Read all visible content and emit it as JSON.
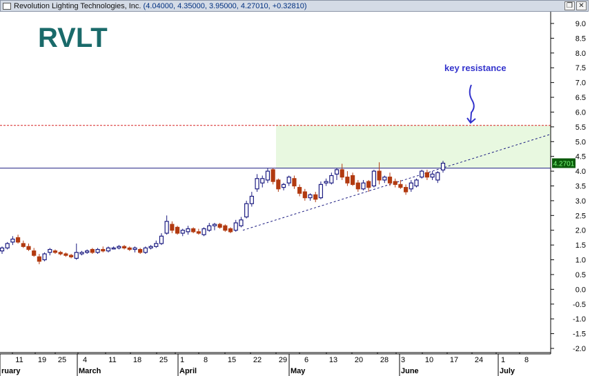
{
  "window": {
    "title": "Revolution Lighting Technologies, Inc.",
    "quote": "(4.04000, 4.35000, 3.95000, 4.27010, +0.32810)",
    "restore_icon": "restore-window-icon",
    "close_icon": "close-window-icon"
  },
  "chart_data": {
    "type": "candlestick",
    "watermark": "RVLT",
    "annotation": "key resistance",
    "last_price_label": "4.2701",
    "colors": {
      "up": "#1a1a80",
      "down": "#b23a10",
      "resistance": "#1a1a80",
      "dashed_red": "#d62020",
      "trend": "#1a1a80",
      "zone": "#e8f8e0",
      "annotation": "#3333cc",
      "watermark": "#1a6a6a",
      "last_badge_bg": "#0a5a0a",
      "last_badge_fg": "#7dff7d"
    },
    "y_axis": {
      "min": -2.0,
      "max": 9.0,
      "ticks": [
        "9.0",
        "8.5",
        "8.0",
        "7.5",
        "7.0",
        "6.5",
        "6.0",
        "5.5",
        "5.0",
        "4.5",
        "4.0",
        "3.5",
        "3.0",
        "2.5",
        "2.0",
        "1.5",
        "1.0",
        "0.5",
        "0.0",
        "-0.5",
        "-1.0",
        "-1.5",
        "-2.0"
      ]
    },
    "x_ticks": [
      "11",
      "19",
      "25",
      "4",
      "11",
      "18",
      "25",
      "1",
      "8",
      "15",
      "22",
      "29",
      "6",
      "13",
      "20",
      "28",
      "3",
      "10",
      "17",
      "24",
      "1",
      "8"
    ],
    "months": [
      "ruary",
      "March",
      "April",
      "May",
      "June",
      "July"
    ],
    "resistance_level": 4.1,
    "red_dashed_level": 5.55,
    "candles": [
      {
        "o": 1.3,
        "h": 1.45,
        "l": 1.2,
        "c": 1.4
      },
      {
        "o": 1.4,
        "h": 1.6,
        "l": 1.35,
        "c": 1.55
      },
      {
        "o": 1.6,
        "h": 1.8,
        "l": 1.5,
        "c": 1.7
      },
      {
        "o": 1.75,
        "h": 1.85,
        "l": 1.55,
        "c": 1.6
      },
      {
        "o": 1.55,
        "h": 1.65,
        "l": 1.4,
        "c": 1.45
      },
      {
        "o": 1.45,
        "h": 1.55,
        "l": 1.3,
        "c": 1.35
      },
      {
        "o": 1.3,
        "h": 1.4,
        "l": 1.1,
        "c": 1.15
      },
      {
        "o": 1.1,
        "h": 1.2,
        "l": 0.85,
        "c": 0.95
      },
      {
        "o": 1.0,
        "h": 1.25,
        "l": 0.95,
        "c": 1.2
      },
      {
        "o": 1.25,
        "h": 1.4,
        "l": 1.15,
        "c": 1.35
      },
      {
        "o": 1.3,
        "h": 1.35,
        "l": 1.2,
        "c": 1.25
      },
      {
        "o": 1.25,
        "h": 1.3,
        "l": 1.15,
        "c": 1.2
      },
      {
        "o": 1.2,
        "h": 1.25,
        "l": 1.1,
        "c": 1.15
      },
      {
        "o": 1.15,
        "h": 1.2,
        "l": 1.05,
        "c": 1.1
      },
      {
        "o": 1.05,
        "h": 1.55,
        "l": 1.0,
        "c": 1.25
      },
      {
        "o": 1.2,
        "h": 1.3,
        "l": 1.15,
        "c": 1.25
      },
      {
        "o": 1.25,
        "h": 1.35,
        "l": 1.2,
        "c": 1.3
      },
      {
        "o": 1.35,
        "h": 1.4,
        "l": 1.2,
        "c": 1.25
      },
      {
        "o": 1.25,
        "h": 1.4,
        "l": 1.2,
        "c": 1.35
      },
      {
        "o": 1.35,
        "h": 1.45,
        "l": 1.25,
        "c": 1.3
      },
      {
        "o": 1.3,
        "h": 1.45,
        "l": 1.25,
        "c": 1.4
      },
      {
        "o": 1.4,
        "h": 1.45,
        "l": 1.35,
        "c": 1.4
      },
      {
        "o": 1.4,
        "h": 1.5,
        "l": 1.35,
        "c": 1.45
      },
      {
        "o": 1.45,
        "h": 1.5,
        "l": 1.35,
        "c": 1.4
      },
      {
        "o": 1.4,
        "h": 1.45,
        "l": 1.3,
        "c": 1.35
      },
      {
        "o": 1.35,
        "h": 1.45,
        "l": 1.25,
        "c": 1.4
      },
      {
        "o": 1.35,
        "h": 1.4,
        "l": 1.2,
        "c": 1.25
      },
      {
        "o": 1.25,
        "h": 1.45,
        "l": 1.2,
        "c": 1.4
      },
      {
        "o": 1.4,
        "h": 1.5,
        "l": 1.35,
        "c": 1.45
      },
      {
        "o": 1.45,
        "h": 1.65,
        "l": 1.4,
        "c": 1.55
      },
      {
        "o": 1.55,
        "h": 1.9,
        "l": 1.5,
        "c": 1.8
      },
      {
        "o": 1.9,
        "h": 2.5,
        "l": 1.85,
        "c": 2.3
      },
      {
        "o": 2.2,
        "h": 2.3,
        "l": 1.9,
        "c": 2.0
      },
      {
        "o": 2.1,
        "h": 2.15,
        "l": 1.85,
        "c": 1.9
      },
      {
        "o": 1.9,
        "h": 2.05,
        "l": 1.8,
        "c": 2.0
      },
      {
        "o": 1.95,
        "h": 2.15,
        "l": 1.85,
        "c": 2.05
      },
      {
        "o": 2.05,
        "h": 2.1,
        "l": 1.9,
        "c": 1.95
      },
      {
        "o": 1.95,
        "h": 2.05,
        "l": 1.85,
        "c": 1.9
      },
      {
        "o": 1.85,
        "h": 2.1,
        "l": 1.8,
        "c": 2.05
      },
      {
        "o": 2.0,
        "h": 2.25,
        "l": 1.95,
        "c": 2.15
      },
      {
        "o": 2.15,
        "h": 2.25,
        "l": 2.0,
        "c": 2.2
      },
      {
        "o": 2.2,
        "h": 2.25,
        "l": 2.05,
        "c": 2.1
      },
      {
        "o": 2.15,
        "h": 2.2,
        "l": 1.95,
        "c": 2.0
      },
      {
        "o": 2.05,
        "h": 2.1,
        "l": 1.9,
        "c": 1.95
      },
      {
        "o": 2.0,
        "h": 2.35,
        "l": 1.95,
        "c": 2.25
      },
      {
        "o": 2.15,
        "h": 2.45,
        "l": 2.1,
        "c": 2.35
      },
      {
        "o": 2.45,
        "h": 3.0,
        "l": 2.4,
        "c": 2.9
      },
      {
        "o": 2.9,
        "h": 3.3,
        "l": 2.8,
        "c": 3.15
      },
      {
        "o": 3.4,
        "h": 3.9,
        "l": 3.3,
        "c": 3.75
      },
      {
        "o": 3.6,
        "h": 3.85,
        "l": 3.45,
        "c": 3.75
      },
      {
        "o": 3.7,
        "h": 4.1,
        "l": 3.6,
        "c": 4.0
      },
      {
        "o": 4.05,
        "h": 4.1,
        "l": 3.55,
        "c": 3.65
      },
      {
        "o": 3.7,
        "h": 3.75,
        "l": 3.3,
        "c": 3.4
      },
      {
        "o": 3.45,
        "h": 3.6,
        "l": 3.35,
        "c": 3.55
      },
      {
        "o": 3.6,
        "h": 3.85,
        "l": 3.5,
        "c": 3.8
      },
      {
        "o": 3.75,
        "h": 3.85,
        "l": 3.4,
        "c": 3.5
      },
      {
        "o": 3.45,
        "h": 3.55,
        "l": 3.15,
        "c": 3.25
      },
      {
        "o": 3.3,
        "h": 3.4,
        "l": 3.0,
        "c": 3.1
      },
      {
        "o": 3.1,
        "h": 3.25,
        "l": 3.0,
        "c": 3.2
      },
      {
        "o": 3.2,
        "h": 3.3,
        "l": 2.95,
        "c": 3.05
      },
      {
        "o": 3.1,
        "h": 3.65,
        "l": 3.05,
        "c": 3.55
      },
      {
        "o": 3.6,
        "h": 3.75,
        "l": 3.5,
        "c": 3.65
      },
      {
        "o": 3.6,
        "h": 3.95,
        "l": 3.55,
        "c": 3.85
      },
      {
        "o": 3.9,
        "h": 4.1,
        "l": 3.7,
        "c": 4.05
      },
      {
        "o": 4.05,
        "h": 4.25,
        "l": 3.7,
        "c": 3.8
      },
      {
        "o": 3.8,
        "h": 4.0,
        "l": 3.5,
        "c": 3.6
      },
      {
        "o": 3.85,
        "h": 3.95,
        "l": 3.5,
        "c": 3.55
      },
      {
        "o": 3.6,
        "h": 3.7,
        "l": 3.3,
        "c": 3.4
      },
      {
        "o": 3.4,
        "h": 3.7,
        "l": 3.35,
        "c": 3.6
      },
      {
        "o": 3.65,
        "h": 3.7,
        "l": 3.3,
        "c": 3.45
      },
      {
        "o": 3.5,
        "h": 4.05,
        "l": 3.45,
        "c": 4.0
      },
      {
        "o": 4.0,
        "h": 4.3,
        "l": 3.55,
        "c": 3.7
      },
      {
        "o": 3.7,
        "h": 3.85,
        "l": 3.6,
        "c": 3.8
      },
      {
        "o": 3.8,
        "h": 3.95,
        "l": 3.5,
        "c": 3.6
      },
      {
        "o": 3.65,
        "h": 3.75,
        "l": 3.45,
        "c": 3.55
      },
      {
        "o": 3.55,
        "h": 3.7,
        "l": 3.4,
        "c": 3.45
      },
      {
        "o": 3.45,
        "h": 3.55,
        "l": 3.2,
        "c": 3.3
      },
      {
        "o": 3.4,
        "h": 3.7,
        "l": 3.3,
        "c": 3.6
      },
      {
        "o": 3.5,
        "h": 3.75,
        "l": 3.45,
        "c": 3.7
      },
      {
        "o": 3.8,
        "h": 4.05,
        "l": 3.75,
        "c": 4.0
      },
      {
        "o": 3.95,
        "h": 4.05,
        "l": 3.7,
        "c": 3.8
      },
      {
        "o": 3.8,
        "h": 4.0,
        "l": 3.7,
        "c": 3.9
      },
      {
        "o": 3.7,
        "h": 4.0,
        "l": 3.6,
        "c": 3.95
      },
      {
        "o": 4.04,
        "h": 4.35,
        "l": 3.95,
        "c": 4.27
      }
    ]
  }
}
